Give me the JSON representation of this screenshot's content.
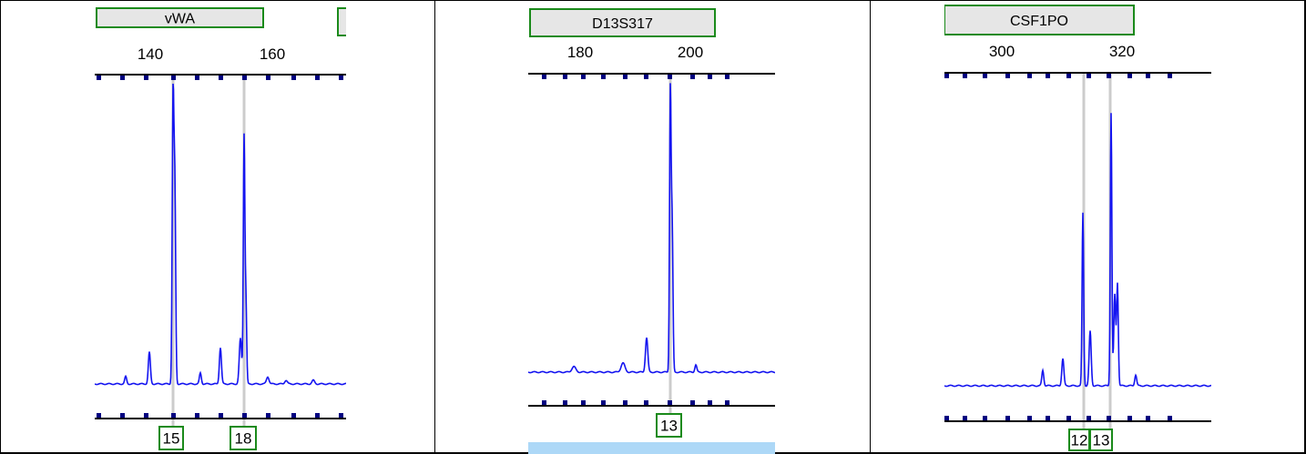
{
  "colors": {
    "trace": "#1414f0",
    "marker_box_border": "#1a8a1a",
    "marker_box_fill": "#e6e6e6",
    "allele_box_border": "#1a8a1a",
    "allele_box_fill": "#ffffff",
    "bin_line": "#cccccc",
    "axis": "#000000",
    "tick_mark": "#000080",
    "blue_strip": "#add8f7"
  },
  "chart_data": [
    {
      "type": "line",
      "marker": "vWA",
      "x_ticks": [
        "140",
        "160"
      ],
      "alleles": [
        "15",
        "18"
      ]
    },
    {
      "type": "line",
      "marker": "D13S317",
      "x_ticks": [
        "180",
        "200"
      ],
      "alleles": [
        "13"
      ]
    },
    {
      "type": "line",
      "marker": "CSF1PO",
      "x_ticks": [
        "300",
        "320"
      ],
      "alleles": [
        "12",
        "13"
      ]
    }
  ]
}
